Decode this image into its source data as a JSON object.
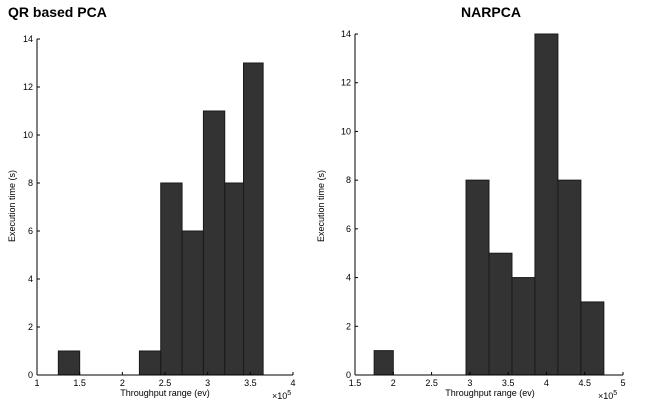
{
  "colors": {
    "bar_fill": "#333333",
    "bar_stroke": "#1a1a1a",
    "axis": "#000000",
    "background": "#ffffff"
  },
  "chart_data": [
    {
      "type": "bar",
      "title": "QR based PCA",
      "xlabel": "Throughput range (ev)",
      "ylabel": "Execution time (s)",
      "x_multiplier": "×10^5",
      "x_multiplier_base": "×10",
      "x_multiplier_exp": "5",
      "xlim": [
        1,
        4
      ],
      "ylim": [
        0,
        14
      ],
      "xticks": [
        1,
        1.5,
        2,
        2.5,
        3,
        3.5,
        4
      ],
      "xtick_labels": [
        "1",
        "1.5",
        "2",
        "2.5",
        "3",
        "3.5",
        "4"
      ],
      "yticks": [
        0,
        2,
        4,
        6,
        8,
        10,
        12,
        14
      ],
      "ytick_labels": [
        "0",
        "2",
        "4",
        "6",
        "8",
        "10",
        "12",
        "14"
      ],
      "grid": false,
      "bins": [
        {
          "start": 1.25,
          "end": 1.5,
          "value": 1
        },
        {
          "start": 2.2,
          "end": 2.45,
          "value": 1
        },
        {
          "start": 2.45,
          "end": 2.7,
          "value": 8
        },
        {
          "start": 2.7,
          "end": 2.95,
          "value": 6
        },
        {
          "start": 2.95,
          "end": 3.2,
          "value": 11
        },
        {
          "start": 3.2,
          "end": 3.42,
          "value": 8
        },
        {
          "start": 3.42,
          "end": 3.65,
          "value": 13
        }
      ]
    },
    {
      "type": "bar",
      "title": "NARPCA",
      "xlabel": "Throughput range (ev)",
      "ylabel": "Execution time (s)",
      "x_multiplier": "×10^5",
      "x_multiplier_base": "×10",
      "x_multiplier_exp": "5",
      "xlim": [
        1.5,
        5
      ],
      "ylim": [
        0,
        14
      ],
      "xticks": [
        1.5,
        2,
        2.5,
        3,
        3.5,
        4,
        4.5,
        5
      ],
      "xtick_labels": [
        "1.5",
        "2",
        "2.5",
        "3",
        "3.5",
        "4",
        "4.5",
        "5"
      ],
      "yticks": [
        0,
        2,
        4,
        6,
        8,
        10,
        12,
        14
      ],
      "ytick_labels": [
        "0",
        "2",
        "4",
        "6",
        "8",
        "10",
        "12",
        "14"
      ],
      "grid": false,
      "bins": [
        {
          "start": 1.75,
          "end": 2.0,
          "value": 1
        },
        {
          "start": 2.95,
          "end": 3.25,
          "value": 8
        },
        {
          "start": 3.25,
          "end": 3.55,
          "value": 5
        },
        {
          "start": 3.55,
          "end": 3.85,
          "value": 4
        },
        {
          "start": 3.85,
          "end": 4.15,
          "value": 14
        },
        {
          "start": 4.15,
          "end": 4.45,
          "value": 8
        },
        {
          "start": 4.45,
          "end": 4.75,
          "value": 3
        }
      ]
    }
  ]
}
